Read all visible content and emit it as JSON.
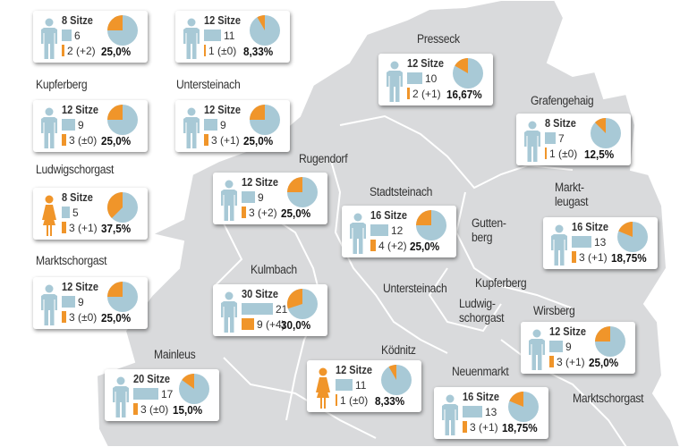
{
  "colors": {
    "map": "#d9dadc",
    "border": "#ffffff",
    "blue": "#a8c9d6",
    "orange": "#f0952a"
  },
  "map_labels": [
    {
      "id": "kupferberg-left",
      "text": "Kupferberg"
    },
    {
      "id": "untersteinach-left",
      "text": "Untersteinach"
    },
    {
      "id": "ludwigschorgast-left",
      "text": "Ludwigschorgast"
    },
    {
      "id": "marktschorgast-left",
      "text": "Marktschorgast"
    },
    {
      "id": "rugendorf",
      "text": "Rugendorf"
    },
    {
      "id": "kulmbach",
      "text": "Kulmbach"
    },
    {
      "id": "mainleus",
      "text": "Mainleus"
    },
    {
      "id": "presseck",
      "text": "Presseck"
    },
    {
      "id": "grafengehaig",
      "text": "Grafengehaig"
    },
    {
      "id": "marktleugast",
      "text": "Markt-\nleugast"
    },
    {
      "id": "stadtsteinach",
      "text": "Stadtsteinach"
    },
    {
      "id": "guttenberg",
      "text": "Gutten-\nberg"
    },
    {
      "id": "untersteinach-map",
      "text": "Untersteinach"
    },
    {
      "id": "kupferberg-map",
      "text": "Kupferberg"
    },
    {
      "id": "ludwigschorgast-map",
      "text": "Ludwig-\nschorgast"
    },
    {
      "id": "wirsberg",
      "text": "Wirsberg"
    },
    {
      "id": "koednitz",
      "text": "Ködnitz"
    },
    {
      "id": "neuenmarkt",
      "text": "Neuenmarkt"
    },
    {
      "id": "marktschorgast-map",
      "text": "Marktschorgast"
    }
  ],
  "cards": [
    {
      "id": "top-left-1",
      "seats": "8 Sitze",
      "men": 6,
      "women": 2,
      "women_label": "2 (+2)",
      "percent": "25,0%",
      "share": 25.0,
      "gender": "male"
    },
    {
      "id": "top-left-2",
      "seats": "12 Sitze",
      "men": 11,
      "women": 1,
      "women_label": "1 (±0)",
      "percent": "8,33%",
      "share": 8.33,
      "gender": "male"
    },
    {
      "id": "kupferberg",
      "seats": "12 Sitze",
      "men": 9,
      "women": 3,
      "women_label": "3 (±0)",
      "percent": "25,0%",
      "share": 25.0,
      "gender": "male"
    },
    {
      "id": "untersteinach",
      "seats": "12 Sitze",
      "men": 9,
      "women": 3,
      "women_label": "3 (+1)",
      "percent": "25,0%",
      "share": 25.0,
      "gender": "male"
    },
    {
      "id": "ludwigschorgast",
      "seats": "8 Sitze",
      "men": 5,
      "women": 3,
      "women_label": "3 (+1)",
      "percent": "37,5%",
      "share": 37.5,
      "gender": "female"
    },
    {
      "id": "rugendorf",
      "seats": "12 Sitze",
      "men": 9,
      "women": 3,
      "women_label": "3 (+2)",
      "percent": "25,0%",
      "share": 25.0,
      "gender": "male"
    },
    {
      "id": "marktschorgast",
      "seats": "12 Sitze",
      "men": 9,
      "women": 3,
      "women_label": "3 (±0)",
      "percent": "25,0%",
      "share": 25.0,
      "gender": "male"
    },
    {
      "id": "kulmbach",
      "seats": "30 Sitze",
      "men": 21,
      "women": 9,
      "women_label": "9 (+4)",
      "percent": "30,0%",
      "share": 30.0,
      "gender": "male"
    },
    {
      "id": "mainleus",
      "seats": "20 Sitze",
      "men": 17,
      "women": 3,
      "women_label": "3 (±0)",
      "percent": "15,0%",
      "share": 15.0,
      "gender": "male"
    },
    {
      "id": "koednitz",
      "seats": "12 Sitze",
      "men": 11,
      "women": 1,
      "women_label": "1 (±0)",
      "percent": "8,33%",
      "share": 8.33,
      "gender": "female"
    },
    {
      "id": "neuenmarkt",
      "seats": "16 Sitze",
      "men": 13,
      "women": 3,
      "women_label": "3 (+1)",
      "percent": "18,75%",
      "share": 18.75,
      "gender": "male"
    },
    {
      "id": "wirsberg",
      "seats": "12 Sitze",
      "men": 9,
      "women": 3,
      "women_label": "3 (+1)",
      "percent": "25,0%",
      "share": 25.0,
      "gender": "male"
    },
    {
      "id": "presseck",
      "seats": "12 Sitze",
      "men": 10,
      "women": 2,
      "women_label": "2 (+1)",
      "percent": "16,67%",
      "share": 16.67,
      "gender": "male"
    },
    {
      "id": "grafengehaig",
      "seats": "8 Sitze",
      "men": 7,
      "women": 1,
      "women_label": "1 (±0)",
      "percent": "12,5%",
      "share": 12.5,
      "gender": "male"
    },
    {
      "id": "marktleugast",
      "seats": "16 Sitze",
      "men": 13,
      "women": 3,
      "women_label": "3 (+1)",
      "percent": "18,75%",
      "share": 18.75,
      "gender": "male"
    },
    {
      "id": "stadtsteinach",
      "seats": "16 Sitze",
      "men": 12,
      "women": 4,
      "women_label": "4 (+2)",
      "percent": "25,0%",
      "share": 25.0,
      "gender": "male"
    }
  ]
}
